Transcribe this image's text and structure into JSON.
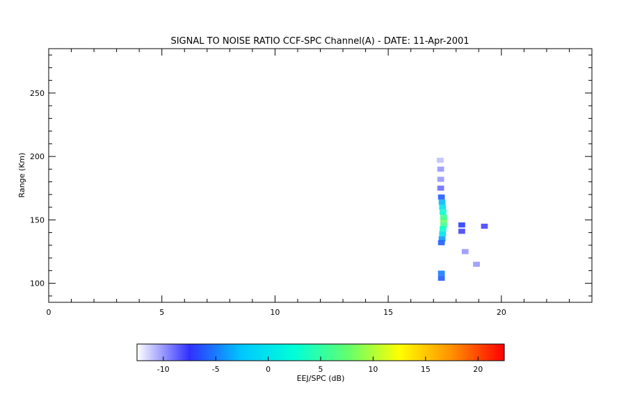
{
  "chart_data": {
    "type": "heatmap",
    "title": "SIGNAL TO NOISE RATIO CCF-SPC Channel(A) - DATE: 11-Apr-2001",
    "xlabel": "",
    "ylabel": "Range (Km)",
    "xlim": [
      0,
      24
    ],
    "ylim": [
      85,
      285
    ],
    "x_ticks": [
      "0",
      "5",
      "10",
      "15",
      "20"
    ],
    "y_ticks": [
      "100",
      "150",
      "200",
      "250"
    ],
    "grid": false,
    "colorbar": {
      "label": "EEJ/SPC (dB)",
      "range": [
        -12.5,
        22.5
      ],
      "ticks": [
        "-10",
        "-5",
        "0",
        "5",
        "10",
        "15",
        "20"
      ],
      "colormap": [
        "#ffffff",
        "#3030ff",
        "#00c8ff",
        "#00ffd8",
        "#60ff70",
        "#ffff00",
        "#ff9000",
        "#ff0000"
      ]
    },
    "cells": [
      {
        "x": 17.45,
        "y": 150,
        "snr": 8
      },
      {
        "x": 17.45,
        "y": 152,
        "snr": 6
      },
      {
        "x": 17.45,
        "y": 146,
        "snr": 6
      },
      {
        "x": 17.42,
        "y": 156,
        "snr": 3
      },
      {
        "x": 17.42,
        "y": 143,
        "snr": 3
      },
      {
        "x": 17.4,
        "y": 160,
        "snr": 0
      },
      {
        "x": 17.4,
        "y": 139,
        "snr": 0
      },
      {
        "x": 17.38,
        "y": 164,
        "snr": -3
      },
      {
        "x": 17.38,
        "y": 135,
        "snr": -4
      },
      {
        "x": 17.35,
        "y": 168,
        "snr": -6
      },
      {
        "x": 17.35,
        "y": 132,
        "snr": -6
      },
      {
        "x": 17.32,
        "y": 175,
        "snr": -9
      },
      {
        "x": 17.32,
        "y": 182,
        "snr": -10
      },
      {
        "x": 17.32,
        "y": 190,
        "snr": -10
      },
      {
        "x": 17.3,
        "y": 197,
        "snr": -11
      },
      {
        "x": 17.35,
        "y": 108,
        "snr": -5
      },
      {
        "x": 17.35,
        "y": 104,
        "snr": -6
      },
      {
        "x": 18.25,
        "y": 146,
        "snr": -7
      },
      {
        "x": 18.25,
        "y": 141,
        "snr": -8
      },
      {
        "x": 19.25,
        "y": 145,
        "snr": -8
      },
      {
        "x": 18.4,
        "y": 125,
        "snr": -10
      },
      {
        "x": 18.9,
        "y": 115,
        "snr": -10
      }
    ]
  }
}
